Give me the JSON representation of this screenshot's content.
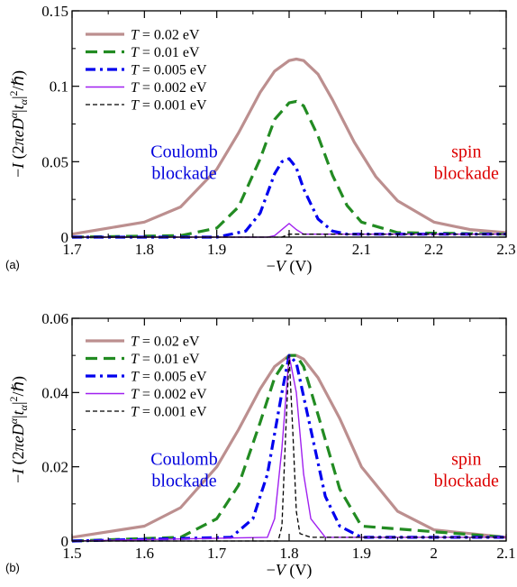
{
  "chart_data": [
    {
      "type": "line",
      "panel": "(a)",
      "xlabel": "−V (V)",
      "ylabel": "−I (2πeD^α|t_α|²/ℏ)",
      "xlim": [
        1.7,
        2.3
      ],
      "ylim": [
        0,
        0.15
      ],
      "xticks": [
        "1.7",
        "1.8",
        "1.9",
        "2",
        "2.1",
        "2.2",
        "2.3"
      ],
      "yticks": [
        "0",
        "0.05",
        "0.1",
        "0.15"
      ],
      "legend_placement": "top-left",
      "grid": false,
      "series": [
        {
          "name": "T = 0.02 eV",
          "label_var": "T",
          "label_rest": " = 0.02 eV",
          "color": "#bc8f8f",
          "dash": "solid",
          "x": [
            1.7,
            1.8,
            1.85,
            1.9,
            1.93,
            1.96,
            1.98,
            2.0,
            2.01,
            2.02,
            2.04,
            2.06,
            2.09,
            2.12,
            2.15,
            2.2,
            2.25,
            2.3
          ],
          "y": [
            0.002,
            0.01,
            0.02,
            0.045,
            0.069,
            0.096,
            0.11,
            0.117,
            0.118,
            0.117,
            0.108,
            0.091,
            0.063,
            0.04,
            0.024,
            0.01,
            0.005,
            0.003
          ]
        },
        {
          "name": "T = 0.01 eV",
          "label_var": "T",
          "label_rest": " = 0.01 eV",
          "color": "#228b22",
          "dash": "long",
          "x": [
            1.7,
            1.85,
            1.9,
            1.93,
            1.96,
            1.98,
            2.0,
            2.01,
            2.02,
            2.04,
            2.06,
            2.08,
            2.1,
            2.15,
            2.3
          ],
          "y": [
            0.0,
            0.001,
            0.006,
            0.02,
            0.052,
            0.078,
            0.089,
            0.09,
            0.087,
            0.067,
            0.041,
            0.021,
            0.01,
            0.003,
            0.002
          ]
        },
        {
          "name": "T = 0.005 eV",
          "label_var": "T",
          "label_rest": " = 0.005 eV",
          "color": "#0000ee",
          "dash": "dashdot",
          "x": [
            1.7,
            1.9,
            1.94,
            1.96,
            1.98,
            1.99,
            2.0,
            2.01,
            2.02,
            2.04,
            2.06,
            2.08,
            2.3
          ],
          "y": [
            0.0,
            0.0,
            0.004,
            0.016,
            0.042,
            0.05,
            0.052,
            0.046,
            0.032,
            0.012,
            0.004,
            0.002,
            0.002
          ]
        },
        {
          "name": "T = 0.002 eV",
          "label_var": "T",
          "label_rest": " = 0.002 eV",
          "color": "#a020f0",
          "dash": "solid-thin",
          "x": [
            1.7,
            1.97,
            1.98,
            1.99,
            2.0,
            2.01,
            2.02,
            2.03,
            2.3
          ],
          "y": [
            0.0,
            0.0,
            0.001,
            0.005,
            0.009,
            0.005,
            0.002,
            0.002,
            0.002
          ]
        },
        {
          "name": "T = 0.001 eV",
          "label_var": "T",
          "label_rest": " = 0.001 eV",
          "color": "#000000",
          "dash": "short",
          "x": [
            1.7,
            1.99,
            2.0,
            2.01,
            2.3
          ],
          "y": [
            0.0,
            0.0,
            0.002,
            0.002,
            0.002
          ]
        }
      ],
      "annotations": [
        {
          "text_lines": [
            "Coulomb",
            "blockade"
          ],
          "color": "#0000dd",
          "x": 1.855,
          "y": 0.053
        },
        {
          "text_lines": [
            "spin",
            "blockade"
          ],
          "color": "#dd0000",
          "x": 2.245,
          "y": 0.053
        }
      ]
    },
    {
      "type": "line",
      "panel": "(b)",
      "xlabel": "−V (V)",
      "ylabel": "−I (2πeD^α|t_α|²/ℏ)",
      "xlim": [
        1.5,
        2.1
      ],
      "ylim": [
        0,
        0.06
      ],
      "xticks": [
        "1.5",
        "1.6",
        "1.7",
        "1.8",
        "1.9",
        "2",
        "2.1"
      ],
      "yticks": [
        "0",
        "0.02",
        "0.04",
        "0.06"
      ],
      "legend_placement": "top-left",
      "grid": false,
      "series": [
        {
          "name": "T = 0.02 eV",
          "label_var": "T",
          "label_rest": " = 0.02 eV",
          "color": "#bc8f8f",
          "dash": "solid",
          "x": [
            1.5,
            1.6,
            1.65,
            1.7,
            1.73,
            1.76,
            1.78,
            1.8,
            1.81,
            1.82,
            1.84,
            1.87,
            1.9,
            1.95,
            2.0,
            2.1
          ],
          "y": [
            0.001,
            0.004,
            0.009,
            0.02,
            0.03,
            0.041,
            0.047,
            0.05,
            0.05,
            0.049,
            0.044,
            0.033,
            0.02,
            0.008,
            0.003,
            0.001
          ]
        },
        {
          "name": "T = 0.01 eV",
          "label_var": "T",
          "label_rest": " = 0.01 eV",
          "color": "#228b22",
          "dash": "long",
          "x": [
            1.5,
            1.65,
            1.7,
            1.73,
            1.76,
            1.78,
            1.8,
            1.81,
            1.82,
            1.84,
            1.87,
            1.9,
            2.1
          ],
          "y": [
            0.0,
            0.001,
            0.006,
            0.015,
            0.032,
            0.044,
            0.05,
            0.05,
            0.047,
            0.034,
            0.014,
            0.004,
            0.001
          ]
        },
        {
          "name": "T = 0.005 eV",
          "label_var": "T",
          "label_rest": " = 0.005 eV",
          "color": "#0000ee",
          "dash": "dashdot",
          "x": [
            1.5,
            1.72,
            1.75,
            1.77,
            1.79,
            1.8,
            1.81,
            1.83,
            1.85,
            1.87,
            1.9,
            2.1
          ],
          "y": [
            0.0,
            0.001,
            0.006,
            0.018,
            0.04,
            0.05,
            0.048,
            0.03,
            0.012,
            0.004,
            0.001,
            0.001
          ]
        },
        {
          "name": "T = 0.002 eV",
          "label_var": "T",
          "label_rest": " = 0.002 eV",
          "color": "#a020f0",
          "dash": "solid-thin",
          "x": [
            1.5,
            1.77,
            1.78,
            1.79,
            1.8,
            1.81,
            1.82,
            1.83,
            1.85,
            2.1
          ],
          "y": [
            0.0,
            0.001,
            0.006,
            0.025,
            0.05,
            0.04,
            0.018,
            0.006,
            0.001,
            0.001
          ]
        },
        {
          "name": "T = 0.001 eV",
          "label_var": "T",
          "label_rest": " = 0.001 eV",
          "color": "#000000",
          "dash": "short",
          "x": [
            1.5,
            1.785,
            1.79,
            1.795,
            1.8,
            1.805,
            1.81,
            1.815,
            1.83,
            2.1
          ],
          "y": [
            0.0,
            0.0,
            0.004,
            0.028,
            0.05,
            0.03,
            0.008,
            0.002,
            0.001,
            0.001
          ]
        }
      ],
      "annotations": [
        {
          "text_lines": [
            "Coulomb",
            "blockade"
          ],
          "color": "#0000dd",
          "x": 1.655,
          "y": 0.0205
        },
        {
          "text_lines": [
            "spin",
            "blockade"
          ],
          "color": "#dd0000",
          "x": 2.045,
          "y": 0.0205
        }
      ]
    }
  ]
}
